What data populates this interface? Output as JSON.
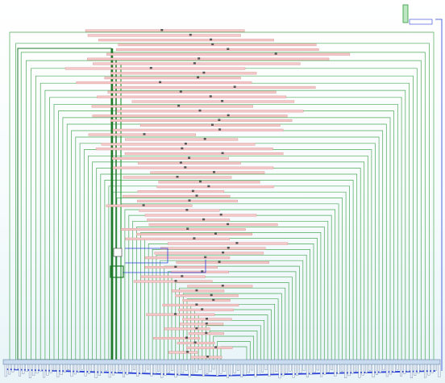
{
  "diagram": {
    "kind": "flowchart-overview",
    "colors": {
      "background_top": "#ffffff",
      "background_bottom": "#e8f4f8",
      "connector": "#2e9b3a",
      "connector_bold": "#1f7a2a",
      "highlight_bar": "#f4c9c9",
      "highlight_bar_border": "#d98b8b",
      "node_marker": "#555555",
      "blue_connector": "#2a3fd8",
      "bottom_row": "#c9dcef",
      "bottom_row_border": "#6a82a6",
      "tab_fill": "#bfe6c3"
    },
    "labels": []
  }
}
